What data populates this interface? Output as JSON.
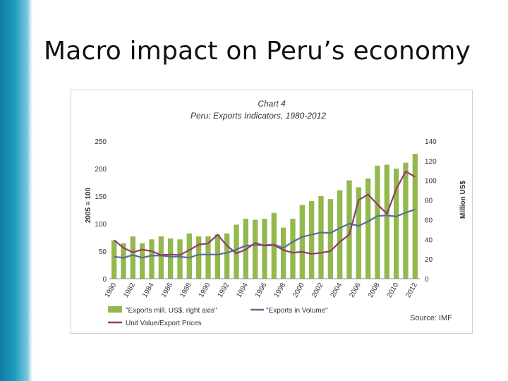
{
  "slide": {
    "title": "Macro impact on Peru’s economy"
  },
  "chart_data": {
    "type": "bar",
    "title": "Chart 4",
    "subtitle": "Peru: Exports Indicators, 1980-2012",
    "ylabel": "2005 = 100",
    "ylabel_right": "Million US$",
    "ylim": [
      0,
      250
    ],
    "yticks": [
      "0",
      "50",
      "100",
      "150",
      "200",
      "250"
    ],
    "ylim_right": [
      0,
      140
    ],
    "yticks_right": [
      "0",
      "20",
      "40",
      "60",
      "80",
      "100",
      "120",
      "140"
    ],
    "x": [
      1980,
      1981,
      1982,
      1983,
      1984,
      1985,
      1986,
      1987,
      1988,
      1989,
      1990,
      1991,
      1992,
      1993,
      1994,
      1995,
      1996,
      1997,
      1998,
      1999,
      2000,
      2001,
      2002,
      2003,
      2004,
      2005,
      2006,
      2007,
      2008,
      2009,
      2010,
      2011,
      2012
    ],
    "xticks": [
      "1980",
      "1982",
      "1984",
      "1986",
      "1988",
      "1990",
      "1992",
      "1994",
      "1996",
      "1998",
      "2000",
      "2002",
      "2004",
      "2006",
      "2008",
      "2010",
      "2012"
    ],
    "grid": false,
    "legend_position": "bottom",
    "series": [
      {
        "name": "\"Exports mill. US$, right axis\"",
        "type": "bar",
        "axis": "right",
        "color": "#93b84e",
        "values": [
          39,
          36,
          43,
          36,
          40,
          43,
          41,
          40,
          46,
          43,
          43,
          45,
          46,
          55,
          61,
          60,
          61,
          67,
          52,
          61,
          75,
          79,
          84,
          81,
          90,
          100,
          93,
          102,
          115,
          116,
          112,
          118,
          127
        ]
      },
      {
        "name": "\"Exports in Volume\"",
        "type": "line",
        "axis": "left",
        "color": "#5b6d96",
        "values": [
          40,
          38,
          43,
          38,
          42,
          42,
          40,
          40,
          38,
          44,
          44,
          44,
          47,
          53,
          60,
          61,
          61,
          62,
          56,
          67,
          76,
          80,
          84,
          83,
          92,
          100,
          96,
          104,
          114,
          115,
          113,
          120,
          126
        ]
      },
      {
        "name": "Unit Value/Export Prices",
        "type": "line",
        "axis": "left",
        "color": "#8e3d6e",
        "values": [
          70,
          56,
          48,
          53,
          50,
          43,
          44,
          43,
          52,
          62,
          64,
          80,
          60,
          46,
          53,
          65,
          60,
          61,
          52,
          47,
          49,
          45,
          47,
          50,
          67,
          80,
          143,
          153,
          135,
          118,
          163,
          195,
          185
        ]
      }
    ],
    "source": "Source: IMF"
  }
}
